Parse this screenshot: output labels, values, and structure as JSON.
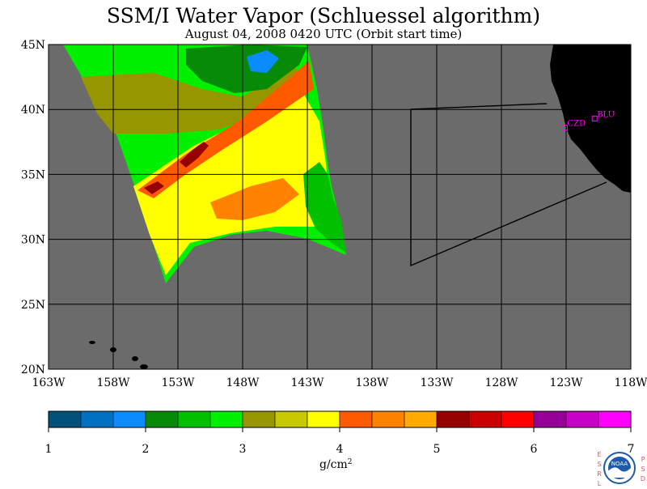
{
  "header": {
    "title": "SSM/I Water Vapor (Schluessel algorithm)",
    "subtitle": "August 04, 2008  0420 UTC  (Orbit start time)"
  },
  "map": {
    "lon_range": [
      -163,
      -118
    ],
    "lat_range": [
      20,
      45
    ],
    "lat_labels": [
      "20N",
      "25N",
      "30N",
      "35N",
      "40N",
      "45N"
    ],
    "lat_values": [
      20,
      25,
      30,
      35,
      40,
      45
    ],
    "lon_labels": [
      "163W",
      "158W",
      "153W",
      "148W",
      "143W",
      "138W",
      "133W",
      "128W",
      "123W",
      "118W"
    ],
    "lon_values": [
      -163,
      -158,
      -153,
      -148,
      -143,
      -138,
      -133,
      -128,
      -123,
      -118
    ],
    "background_color": "#6b6b6b",
    "land_color": "#000000",
    "stations": [
      {
        "label": "CZD",
        "lon": -123.1,
        "lat": 38.6
      },
      {
        "label": "BLU",
        "lon": -120.8,
        "lat": 39.3
      }
    ]
  },
  "colorbar": {
    "tick_labels": [
      "1",
      "2",
      "3",
      "4",
      "5",
      "6",
      "7"
    ],
    "range": [
      1,
      7
    ],
    "unit_label": "g/cm",
    "unit_superscript": "2",
    "colors": [
      "#00527a",
      "#0070c0",
      "#0a8cff",
      "#078a07",
      "#00c000",
      "#00f000",
      "#969600",
      "#c8c800",
      "#ffff00",
      "#ff5a00",
      "#ff8200",
      "#ffaa00",
      "#960000",
      "#c80000",
      "#ff0000",
      "#960096",
      "#c800c8",
      "#ff00ff"
    ]
  },
  "logo": {
    "text": "NOAA",
    "left_vertical": "ESRL",
    "right_vertical": "PSD"
  }
}
